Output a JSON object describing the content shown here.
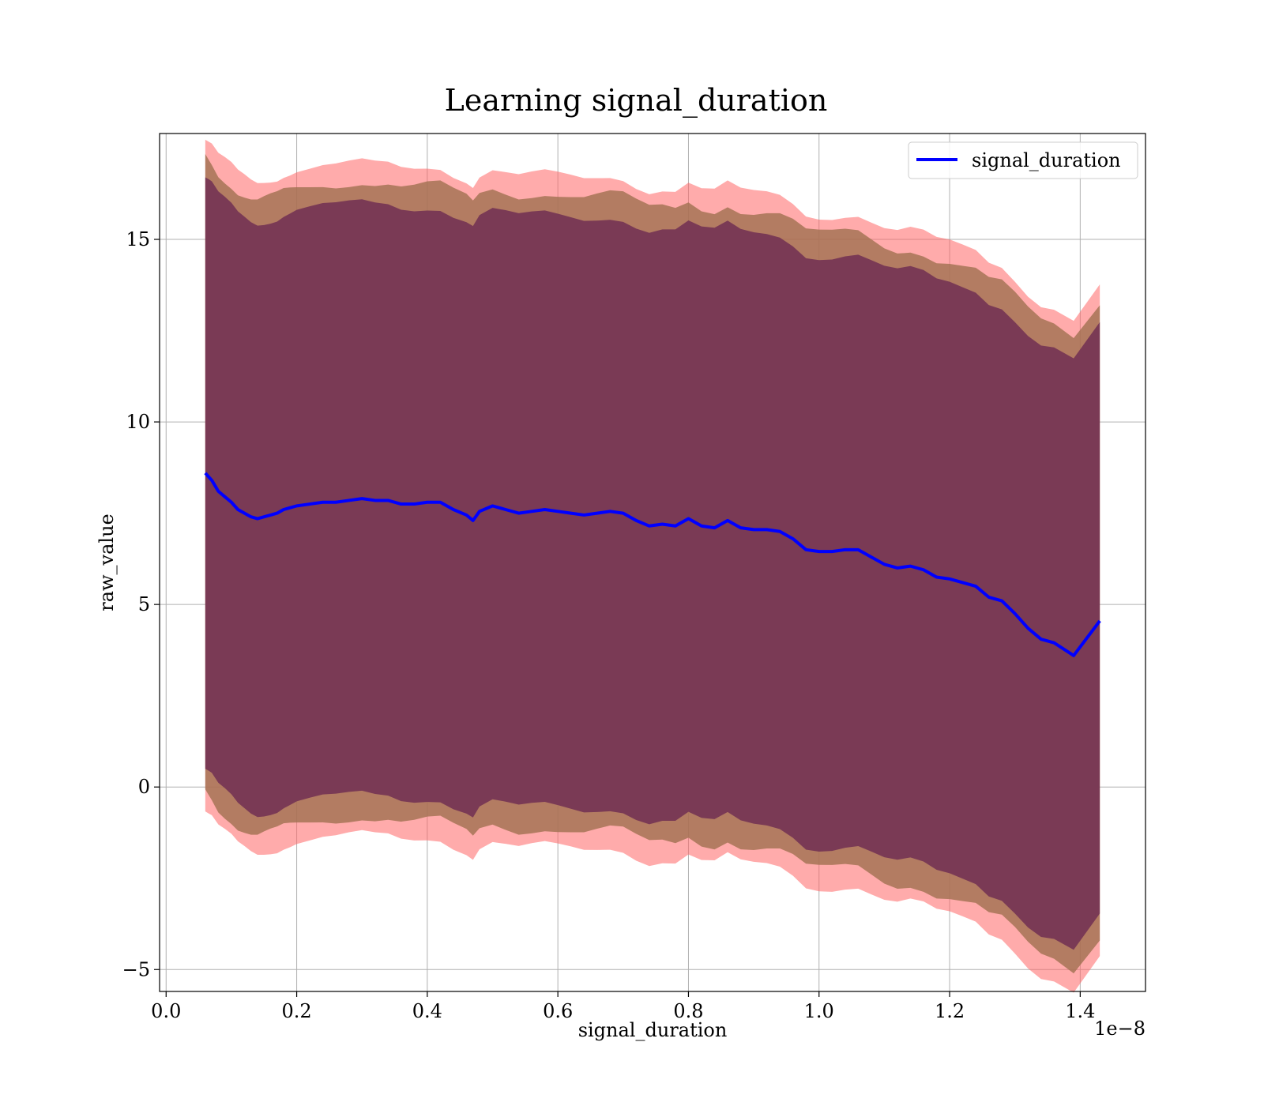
{
  "chart_data": {
    "type": "line",
    "title": "Learning signal_duration",
    "xlabel": "signal_duration",
    "ylabel": "raw_value",
    "x_offset_text": "1e−8",
    "x_scale": 1e-08,
    "xlim": [
      -0.01,
      1.5
    ],
    "ylim": [
      -5.6,
      17.9
    ],
    "x_ticks": [
      0.0,
      0.2,
      0.4,
      0.6,
      0.8,
      1.0,
      1.2,
      1.4
    ],
    "x_tick_labels": [
      "0.0",
      "0.2",
      "0.4",
      "0.6",
      "0.8",
      "1.0",
      "1.2",
      "1.4"
    ],
    "y_ticks": [
      -5,
      0,
      5,
      10,
      15
    ],
    "y_tick_labels": [
      "−5",
      "0",
      "5",
      "10",
      "15"
    ],
    "grid": true,
    "legend": {
      "position": "top-right",
      "entries": [
        "signal_duration"
      ]
    },
    "colors": {
      "line": "#0000ff",
      "band_outer": "#ff6666",
      "band_middle": "#a07050",
      "band_inner": "#7a3a55",
      "grid": "#b0b0b0"
    },
    "series": [
      {
        "name": "signal_duration",
        "x": [
          0.06,
          0.065,
          0.07,
          0.08,
          0.09,
          0.1,
          0.11,
          0.12,
          0.13,
          0.14,
          0.15,
          0.16,
          0.17,
          0.18,
          0.19,
          0.2,
          0.22,
          0.24,
          0.26,
          0.28,
          0.3,
          0.32,
          0.34,
          0.36,
          0.38,
          0.4,
          0.42,
          0.44,
          0.46,
          0.47,
          0.48,
          0.5,
          0.52,
          0.54,
          0.56,
          0.58,
          0.6,
          0.62,
          0.64,
          0.66,
          0.68,
          0.7,
          0.72,
          0.74,
          0.76,
          0.78,
          0.8,
          0.82,
          0.84,
          0.86,
          0.88,
          0.9,
          0.92,
          0.94,
          0.96,
          0.98,
          1.0,
          1.02,
          1.04,
          1.06,
          1.08,
          1.1,
          1.12,
          1.14,
          1.16,
          1.18,
          1.2,
          1.22,
          1.24,
          1.26,
          1.28,
          1.3,
          1.32,
          1.34,
          1.36,
          1.39,
          1.43
        ],
        "y": [
          8.6,
          8.5,
          8.4,
          8.1,
          7.95,
          7.8,
          7.6,
          7.5,
          7.4,
          7.35,
          7.4,
          7.45,
          7.5,
          7.6,
          7.65,
          7.7,
          7.75,
          7.8,
          7.8,
          7.85,
          7.9,
          7.85,
          7.85,
          7.75,
          7.75,
          7.8,
          7.8,
          7.6,
          7.45,
          7.3,
          7.55,
          7.7,
          7.6,
          7.5,
          7.55,
          7.6,
          7.55,
          7.5,
          7.45,
          7.5,
          7.55,
          7.5,
          7.3,
          7.15,
          7.2,
          7.15,
          7.35,
          7.15,
          7.1,
          7.3,
          7.1,
          7.05,
          7.05,
          7.0,
          6.8,
          6.5,
          6.45,
          6.45,
          6.5,
          6.5,
          6.3,
          6.1,
          6.0,
          6.05,
          5.95,
          5.75,
          5.7,
          5.6,
          5.5,
          5.2,
          5.1,
          4.75,
          4.35,
          4.05,
          3.95,
          3.6,
          4.55
        ]
      }
    ],
    "band_offsets": [
      8.1,
      8.7,
      9.2
    ]
  }
}
